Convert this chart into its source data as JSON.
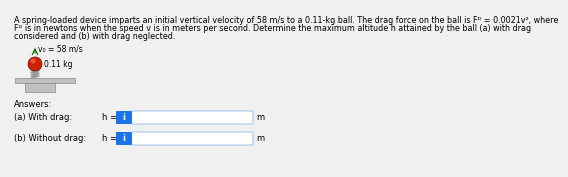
{
  "problem_text_line1": "A spring-loaded device imparts an initial vertical velocity of 58 m/s to a 0.11-kg ball. The drag force on the ball is Fᴰ = 0.0021v², where",
  "problem_text_line2": "Fᴰ is in newtons when the speed v is in meters per second. Determine the maximum altitude h attained by the ball (a) with drag",
  "problem_text_line3": "considered and (b) with drag neglected.",
  "v0_label": "v₀ = 58 m/s",
  "mass_label": "0.11 kg",
  "answers_label": "Answers:",
  "part_a_label": "(a) With drag:",
  "part_a_eq": "h =",
  "part_b_label": "(b) Without drag:",
  "part_b_eq": "h =",
  "unit": "m",
  "info_icon_color": "#1a73e8",
  "info_icon_text": "i",
  "input_border_color": "#90b8e8",
  "bg_color": "#f0f0f0",
  "ball_color": "#cc2200",
  "ball_highlight": "#ee4422",
  "spring_color": "#999999",
  "platform_color": "#c0c0c0",
  "platform_dark": "#a0a0a0",
  "text_fontsize": 5.8,
  "label_fontsize": 6.0
}
